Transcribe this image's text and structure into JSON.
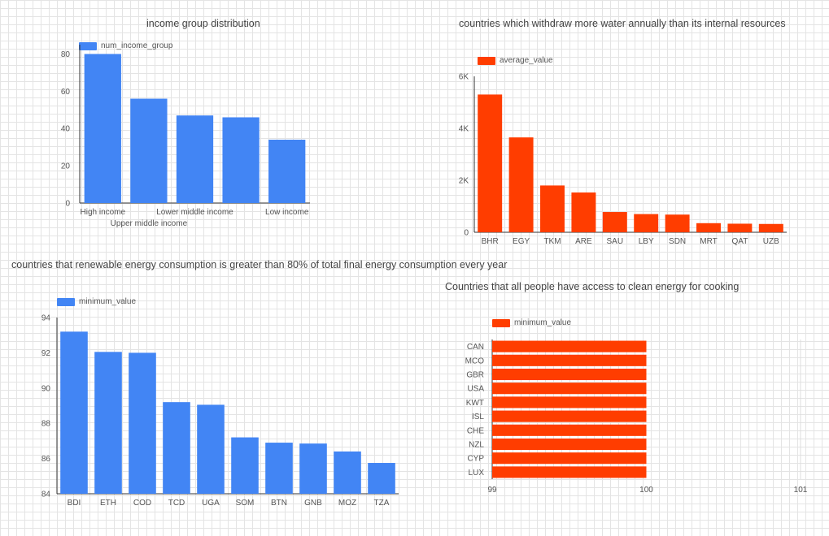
{
  "chart_data": [
    {
      "type": "bar",
      "title": "income group distribution",
      "legend": "num_income_group",
      "categories": [
        "High income",
        "Upper middle income",
        "Lower middle income",
        "Upper middle income",
        "Low income"
      ],
      "tick_labels": [
        "High income",
        "Upper middle income",
        "Lower middle income",
        "",
        "Low income"
      ],
      "values": [
        80,
        56,
        47,
        46,
        34
      ],
      "yticks": [
        "0",
        "20",
        "40",
        "60",
        "80"
      ],
      "ylim": [
        0,
        85
      ],
      "color": "#4285f4"
    },
    {
      "type": "bar",
      "title": "countries which withdraw more water annually than its internal resources",
      "legend": "average_value",
      "categories": [
        "BHR",
        "EGY",
        "TKM",
        "ARE",
        "SAU",
        "LBY",
        "SDN",
        "MRT",
        "QAT",
        "UZB"
      ],
      "values": [
        5300,
        3650,
        1800,
        1530,
        780,
        700,
        680,
        350,
        330,
        320
      ],
      "yticks": [
        "0",
        "2K",
        "4K",
        "6K"
      ],
      "ylim": [
        0,
        6000
      ],
      "color": "#ff3d00"
    },
    {
      "type": "bar",
      "title": "countries that renewable energy consumption is greater than 80% of total final energy consumption every year",
      "legend": "minimum_value",
      "categories": [
        "BDI",
        "ETH",
        "COD",
        "TCD",
        "UGA",
        "SOM",
        "BTN",
        "GNB",
        "MOZ",
        "TZA"
      ],
      "values": [
        93.2,
        92.05,
        92.0,
        89.2,
        89.05,
        87.2,
        86.9,
        86.85,
        86.4,
        85.75
      ],
      "yticks": [
        "84",
        "86",
        "88",
        "90",
        "92",
        "94"
      ],
      "ylim": [
        84,
        94
      ],
      "color": "#4285f4"
    },
    {
      "type": "bar",
      "orientation": "horizontal",
      "title": "Countries that all people have access to clean energy for cooking",
      "legend": "minimum_value",
      "categories": [
        "CAN",
        "MCO",
        "GBR",
        "USA",
        "KWT",
        "ISL",
        "CHE",
        "NZL",
        "CYP",
        "LUX"
      ],
      "values": [
        100,
        100,
        100,
        100,
        100,
        100,
        100,
        100,
        100,
        100
      ],
      "xticks": [
        "99",
        "100",
        "101"
      ],
      "xlim": [
        99,
        101
      ],
      "color": "#ff3d00"
    }
  ]
}
